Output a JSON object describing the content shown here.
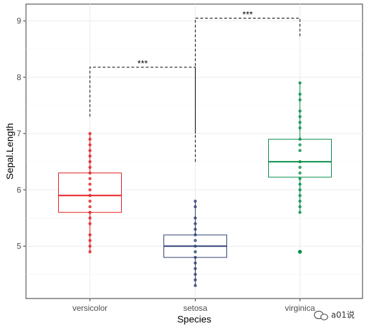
{
  "chart_data": {
    "type": "boxplot",
    "xlabel": "Species",
    "ylabel": "Sepal.Length",
    "categories": [
      "versicolor",
      "setosa",
      "virginica"
    ],
    "ylim": [
      4.07,
      9.3
    ],
    "yticks": [
      5,
      6,
      7,
      8,
      9
    ],
    "grid": true,
    "boxes": [
      {
        "category": "versicolor",
        "color": "#e41a1c",
        "q1": 5.6,
        "median": 5.9,
        "q3": 6.3,
        "whisker_low": 4.9,
        "whisker_high": 7.0,
        "points": [
          4.9,
          5.0,
          5.1,
          5.2,
          5.4,
          5.5,
          5.6,
          5.7,
          5.8,
          5.9,
          6.0,
          6.1,
          6.2,
          6.3,
          6.4,
          6.5,
          6.6,
          6.7,
          6.8,
          6.9,
          7.0
        ],
        "outliers": []
      },
      {
        "category": "setosa",
        "color": "#2c3e73",
        "q1": 4.8,
        "median": 5.0,
        "q3": 5.2,
        "whisker_low": 4.3,
        "whisker_high": 5.8,
        "points": [
          4.3,
          4.4,
          4.5,
          4.6,
          4.7,
          4.8,
          4.9,
          5.0,
          5.1,
          5.2,
          5.3,
          5.4,
          5.5,
          5.7,
          5.8
        ],
        "outliers": []
      },
      {
        "category": "virginica",
        "color": "#008b45",
        "q1": 6.225,
        "median": 6.5,
        "q3": 6.9,
        "whisker_low": 5.6,
        "whisker_high": 7.9,
        "points": [
          5.6,
          5.7,
          5.8,
          5.9,
          6.0,
          6.1,
          6.2,
          6.3,
          6.4,
          6.5,
          6.7,
          6.8,
          6.9,
          7.1,
          7.2,
          7.3,
          7.4,
          7.6,
          7.7,
          7.9
        ],
        "outliers": [
          4.9
        ]
      }
    ],
    "comparisons": [
      {
        "from": "versicolor",
        "to": "setosa",
        "y": 8.18,
        "left_end": 7.3,
        "right_end": 7.0,
        "label": "***"
      },
      {
        "from": "setosa",
        "to": "virginica",
        "y": 9.05,
        "left_end": 6.5,
        "right_end": 8.7,
        "label": "***"
      }
    ]
  },
  "watermark": {
    "text": "a01说",
    "icon": "chat-bubble-icon"
  }
}
